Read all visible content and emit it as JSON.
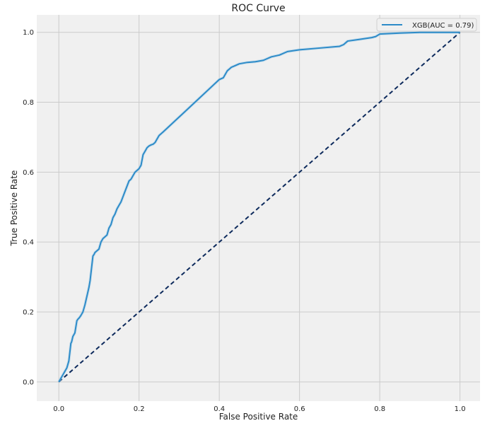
{
  "chart_data": {
    "type": "line",
    "title": "ROC Curve",
    "xlabel": "False Positive Rate",
    "ylabel": "True Positive Rate",
    "xlim": [
      -0.055,
      1.05
    ],
    "ylim": [
      -0.055,
      1.05
    ],
    "grid": true,
    "legend_position": "top-right",
    "xticks": [
      "0.0",
      "0.2",
      "0.4",
      "0.6",
      "0.8",
      "1.0"
    ],
    "yticks": [
      "0.0",
      "0.2",
      "0.4",
      "0.6",
      "0.8",
      "1.0"
    ],
    "series": [
      {
        "name": "XGB(AUC = 0.79)",
        "color": "#2d8bc8",
        "style": "solid",
        "x": [
          0.0,
          0.005,
          0.01,
          0.015,
          0.02,
          0.025,
          0.028,
          0.03,
          0.032,
          0.035,
          0.04,
          0.045,
          0.048,
          0.05,
          0.052,
          0.055,
          0.06,
          0.065,
          0.07,
          0.072,
          0.075,
          0.078,
          0.08,
          0.085,
          0.088,
          0.09,
          0.095,
          0.1,
          0.105,
          0.11,
          0.115,
          0.12,
          0.125,
          0.13,
          0.135,
          0.14,
          0.145,
          0.15,
          0.155,
          0.16,
          0.165,
          0.17,
          0.175,
          0.18,
          0.185,
          0.19,
          0.195,
          0.2,
          0.205,
          0.21,
          0.215,
          0.22,
          0.225,
          0.23,
          0.235,
          0.24,
          0.245,
          0.25,
          0.255,
          0.26,
          0.33,
          0.4,
          0.41,
          0.415,
          0.42,
          0.425,
          0.43,
          0.44,
          0.45,
          0.46,
          0.47,
          0.49,
          0.51,
          0.52,
          0.53,
          0.55,
          0.57,
          0.6,
          0.65,
          0.7,
          0.71,
          0.72,
          0.75,
          0.78,
          0.79,
          0.8,
          0.85,
          0.9,
          1.0
        ],
        "y": [
          0.0,
          0.01,
          0.02,
          0.03,
          0.04,
          0.06,
          0.09,
          0.11,
          0.115,
          0.13,
          0.14,
          0.175,
          0.18,
          0.182,
          0.185,
          0.19,
          0.2,
          0.22,
          0.245,
          0.255,
          0.27,
          0.29,
          0.31,
          0.36,
          0.365,
          0.37,
          0.375,
          0.38,
          0.4,
          0.41,
          0.415,
          0.42,
          0.44,
          0.45,
          0.47,
          0.48,
          0.495,
          0.505,
          0.515,
          0.53,
          0.545,
          0.56,
          0.575,
          0.58,
          0.59,
          0.6,
          0.605,
          0.61,
          0.62,
          0.65,
          0.66,
          0.67,
          0.675,
          0.678,
          0.68,
          0.685,
          0.695,
          0.705,
          0.71,
          0.715,
          0.79,
          0.865,
          0.87,
          0.88,
          0.89,
          0.895,
          0.9,
          0.905,
          0.91,
          0.912,
          0.914,
          0.916,
          0.92,
          0.925,
          0.93,
          0.935,
          0.945,
          0.95,
          0.955,
          0.96,
          0.965,
          0.975,
          0.98,
          0.985,
          0.988,
          0.995,
          0.998,
          1.0,
          1.0
        ]
      },
      {
        "name": "",
        "color": "#0d2a5c",
        "style": "dashed",
        "x": [
          0.0,
          1.0
        ],
        "y": [
          0.0,
          1.0
        ]
      }
    ]
  }
}
